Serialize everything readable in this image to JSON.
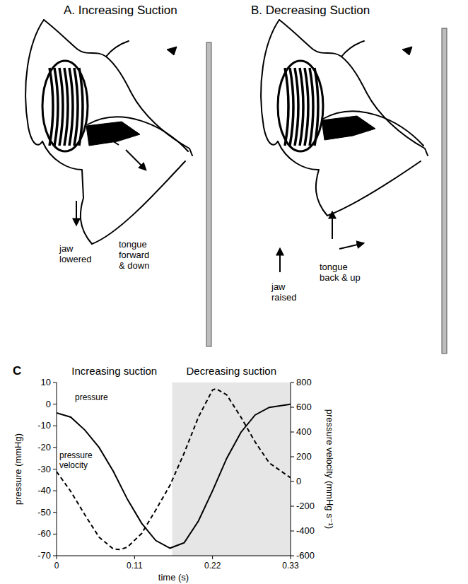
{
  "diagram": {
    "panels": [
      {
        "title": "A. Increasing Suction",
        "labels": [
          {
            "lines": [
              "jaw",
              "lowered"
            ]
          },
          {
            "lines": [
              "tongue",
              "forward",
              "& down"
            ]
          }
        ]
      },
      {
        "title": "B. Decreasing Suction",
        "labels": [
          {
            "lines": [
              "jaw",
              "raised"
            ]
          },
          {
            "lines": [
              "tongue",
              "back & up"
            ]
          }
        ]
      }
    ]
  },
  "chart_data": {
    "type": "line",
    "panel_label": "C",
    "x_label": "time (s)",
    "y_label": "pressure (mmHg)",
    "y2_label": "pressure velocity (mmHg s⁻¹)",
    "xlim": [
      0,
      0.33
    ],
    "xticks": [
      0,
      0.11,
      0.22,
      0.33
    ],
    "ylim": [
      -70,
      10
    ],
    "yticks": [
      -70,
      -60,
      -50,
      -40,
      -30,
      -20,
      -10,
      0,
      10
    ],
    "y2lim": [
      -600,
      800
    ],
    "y2ticks": [
      -600,
      -400,
      -200,
      0,
      200,
      400,
      600,
      800
    ],
    "phases": [
      {
        "label": "Increasing suction",
        "x": [
          0,
          0.163
        ],
        "color": "#ffffff"
      },
      {
        "label": "Decreasing suction",
        "x": [
          0.163,
          0.33
        ],
        "color": "#e6e6e6"
      }
    ],
    "series": [
      {
        "name": "pressure",
        "color": "#000000",
        "line_style": "solid",
        "x": [
          0,
          0.02,
          0.04,
          0.06,
          0.08,
          0.1,
          0.12,
          0.14,
          0.16,
          0.18,
          0.2,
          0.22,
          0.24,
          0.26,
          0.28,
          0.3,
          0.33
        ],
        "values": [
          -4,
          -6,
          -12,
          -20,
          -31,
          -44,
          -55,
          -63,
          -66.5,
          -64,
          -54,
          -40,
          -25,
          -13,
          -5,
          -1.5,
          0
        ]
      },
      {
        "name": "pressure velocity",
        "color": "#000000",
        "line_style": "dashed",
        "axis": "y2",
        "x": [
          0,
          0.02,
          0.04,
          0.06,
          0.08,
          0.09,
          0.1,
          0.12,
          0.14,
          0.16,
          0.18,
          0.2,
          0.22,
          0.225,
          0.24,
          0.26,
          0.28,
          0.3,
          0.33
        ],
        "values": [
          80,
          -80,
          -270,
          -450,
          -545,
          -550,
          -530,
          -420,
          -230,
          -30,
          230,
          520,
          740,
          750,
          700,
          520,
          320,
          150,
          30
        ]
      }
    ]
  }
}
